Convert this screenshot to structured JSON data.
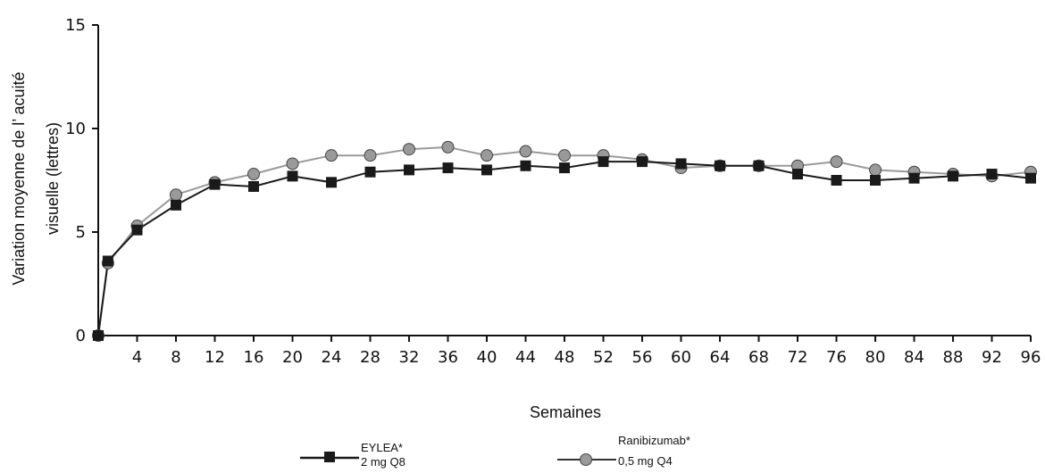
{
  "chart_data": {
    "type": "line",
    "title": "",
    "ylabel_line1": "Variation moyenne de l’  acuité",
    "ylabel_line2": "visuelle (lettres)",
    "xlabel": "Semaines",
    "ylim": [
      0,
      15
    ],
    "xlim": [
      0,
      96
    ],
    "yticks": [
      "0",
      "5",
      "10",
      "15"
    ],
    "xticks": [
      "4",
      "8",
      "12",
      "16",
      "20",
      "24",
      "28",
      "32",
      "36",
      "40",
      "44",
      "48",
      "52",
      "56",
      "60",
      "64",
      "68",
      "72",
      "76",
      "80",
      "84",
      "88",
      "92",
      "96"
    ],
    "grid": false,
    "legend_position": "bottom",
    "x": [
      0,
      1,
      4,
      8,
      12,
      16,
      20,
      24,
      28,
      32,
      36,
      40,
      44,
      48,
      52,
      56,
      60,
      64,
      68,
      72,
      76,
      80,
      84,
      88,
      92,
      96
    ],
    "series": [
      {
        "name": "EYLEA* 2 mg Q8",
        "legend_line1": "EYLEA*",
        "legend_line2": "2 mg Q8",
        "marker": "square",
        "color": "#1a1a1a",
        "values": [
          0,
          3.6,
          5.1,
          6.3,
          7.3,
          7.2,
          7.7,
          7.4,
          7.9,
          8.0,
          8.1,
          8.0,
          8.2,
          8.1,
          8.4,
          8.4,
          8.3,
          8.2,
          8.2,
          7.8,
          7.5,
          7.5,
          7.6,
          7.7,
          7.8,
          7.6
        ]
      },
      {
        "name": "Ranibizumab* 0,5 mg Q4",
        "legend_line1": "Ranibizumab*",
        "legend_line2": "0,5 mg Q4",
        "marker": "circle",
        "color": "#8c8c8c",
        "values": [
          0,
          3.5,
          5.3,
          6.8,
          7.4,
          7.8,
          8.3,
          8.7,
          8.7,
          9.0,
          9.1,
          8.7,
          8.9,
          8.7,
          8.7,
          8.5,
          8.1,
          8.2,
          8.2,
          8.2,
          8.4,
          8.0,
          7.9,
          7.8,
          7.7,
          7.9
        ]
      }
    ]
  }
}
